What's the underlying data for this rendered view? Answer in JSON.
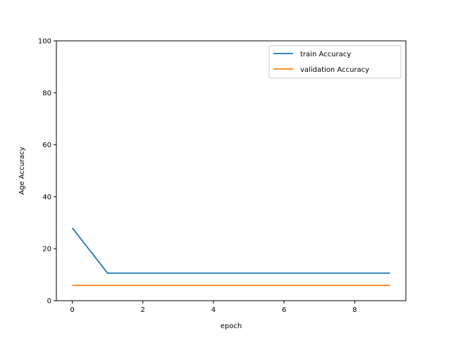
{
  "chart_data": {
    "type": "line",
    "title": "",
    "xlabel": "epoch",
    "ylabel": "Age Accuracy",
    "xlim": [
      -0.45,
      9.45
    ],
    "ylim": [
      0,
      100
    ],
    "xticks": [
      "0",
      "2",
      "4",
      "6",
      "8"
    ],
    "yticks": [
      "0",
      "20",
      "40",
      "60",
      "80",
      "100"
    ],
    "grid": false,
    "legend_position": "top-right",
    "x": [
      0,
      1,
      2,
      3,
      4,
      5,
      6,
      7,
      8,
      9
    ],
    "series": [
      {
        "name": "train Accuracy",
        "color": "#1f77b4",
        "values": [
          28.0,
          10.6,
          10.6,
          10.6,
          10.6,
          10.6,
          10.6,
          10.6,
          10.6,
          10.6
        ]
      },
      {
        "name": "validation Accuracy",
        "color": "#ff7f0e",
        "values": [
          5.9,
          5.9,
          5.9,
          5.9,
          5.9,
          5.9,
          5.9,
          5.9,
          5.9,
          5.9
        ]
      }
    ]
  }
}
